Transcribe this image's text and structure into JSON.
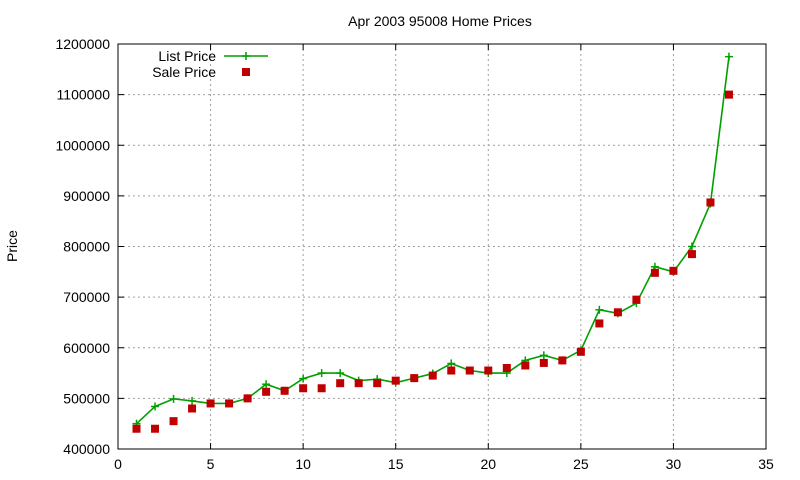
{
  "chart_data": {
    "type": "line",
    "title": "Apr 2003 95008 Home Prices",
    "xlabel": "",
    "ylabel": "Price",
    "xlim": [
      0,
      35
    ],
    "ylim": [
      400000,
      1200000
    ],
    "xticks": [
      0,
      5,
      10,
      15,
      20,
      25,
      30,
      35
    ],
    "yticks": [
      400000,
      500000,
      600000,
      700000,
      800000,
      900000,
      1000000,
      1100000,
      1200000
    ],
    "grid": true,
    "legend_position": "top-left",
    "x": [
      1,
      2,
      3,
      4,
      5,
      6,
      7,
      8,
      9,
      10,
      11,
      12,
      13,
      14,
      15,
      16,
      17,
      18,
      19,
      20,
      21,
      22,
      23,
      24,
      25,
      26,
      27,
      28,
      29,
      30,
      31,
      32,
      33
    ],
    "series": [
      {
        "name": "List Price",
        "style": "line-with-plus-markers",
        "color": "#00a000",
        "values": [
          450000,
          484000,
          499000,
          495000,
          490000,
          490000,
          500000,
          528000,
          515000,
          539000,
          550000,
          550000,
          535000,
          538000,
          531000,
          540000,
          549000,
          569000,
          555000,
          550000,
          550000,
          575000,
          585000,
          575000,
          595000,
          675000,
          668000,
          688000,
          760000,
          750000,
          800000,
          885000,
          1175000
        ]
      },
      {
        "name": "Sale Price",
        "style": "square-markers",
        "color": "#c00000",
        "values": [
          440000,
          440000,
          455000,
          480000,
          490000,
          490000,
          500000,
          513000,
          515000,
          520000,
          520000,
          530000,
          530000,
          530000,
          535000,
          540000,
          545000,
          555000,
          555000,
          555000,
          560000,
          565000,
          570000,
          575000,
          592000,
          648000,
          670000,
          695000,
          748000,
          752000,
          785000,
          887000,
          1100000
        ]
      }
    ]
  }
}
